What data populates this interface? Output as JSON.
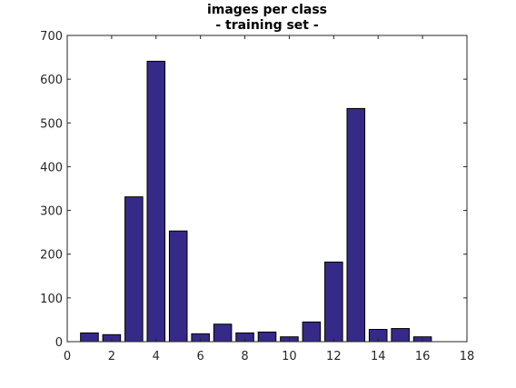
{
  "chart_data": {
    "type": "bar",
    "title_lines": [
      "images per class",
      "- training set -"
    ],
    "xlabel": "",
    "ylabel": "",
    "x": [
      1,
      2,
      3,
      4,
      5,
      6,
      7,
      8,
      9,
      10,
      11,
      12,
      13,
      14,
      15,
      16
    ],
    "values": [
      20,
      16,
      331,
      641,
      253,
      18,
      40,
      20,
      22,
      11,
      45,
      182,
      533,
      28,
      30,
      11
    ],
    "xlim": [
      0,
      18
    ],
    "ylim": [
      0,
      700
    ],
    "xticks": [
      0,
      2,
      4,
      6,
      8,
      10,
      12,
      14,
      16,
      18
    ],
    "yticks": [
      0,
      100,
      200,
      300,
      400,
      500,
      600,
      700
    ],
    "bar_color": "#352a87",
    "bar_edge_color": "#000000",
    "grid": false,
    "legend": null
  }
}
